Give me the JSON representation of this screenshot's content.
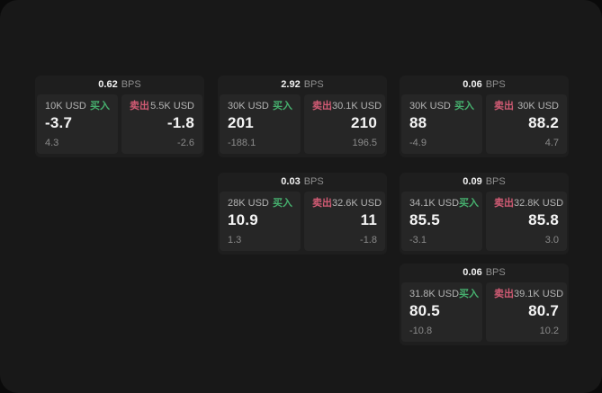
{
  "labels": {
    "bps_unit": "BPS",
    "buy": "买入",
    "sell": "卖出"
  },
  "colors": {
    "buy_green": "#46b06e",
    "sell_red": "#d15b74",
    "screen_bg": "#181818",
    "card_bg": "#1e1e1e",
    "panel_bg": "#262626"
  },
  "cards": [
    {
      "bps": "0.62",
      "buy": {
        "amount": "10K USD",
        "price": "-3.7",
        "sub": "4.3"
      },
      "sell": {
        "amount": "5.5K USD",
        "price": "-1.8",
        "sub": "-2.6"
      }
    },
    {
      "bps": "2.92",
      "buy": {
        "amount": "30K USD",
        "price": "201",
        "sub": "-188.1"
      },
      "sell": {
        "amount": "30.1K USD",
        "price": "210",
        "sub": "196.5"
      }
    },
    {
      "bps": "0.06",
      "buy": {
        "amount": "30K USD",
        "price": "88",
        "sub": "-4.9"
      },
      "sell": {
        "amount": "30K USD",
        "price": "88.2",
        "sub": "4.7"
      }
    },
    {
      "bps": "0.03",
      "buy": {
        "amount": "28K USD",
        "price": "10.9",
        "sub": "1.3"
      },
      "sell": {
        "amount": "32.6K USD",
        "price": "11",
        "sub": "-1.8"
      }
    },
    {
      "bps": "0.09",
      "buy": {
        "amount": "34.1K USD",
        "price": "85.5",
        "sub": "-3.1"
      },
      "sell": {
        "amount": "32.8K USD",
        "price": "85.8",
        "sub": "3.0"
      }
    },
    {
      "bps": "0.06",
      "buy": {
        "amount": "31.8K USD",
        "price": "80.5",
        "sub": "-10.8"
      },
      "sell": {
        "amount": "39.1K USD",
        "price": "80.7",
        "sub": "10.2"
      }
    }
  ]
}
